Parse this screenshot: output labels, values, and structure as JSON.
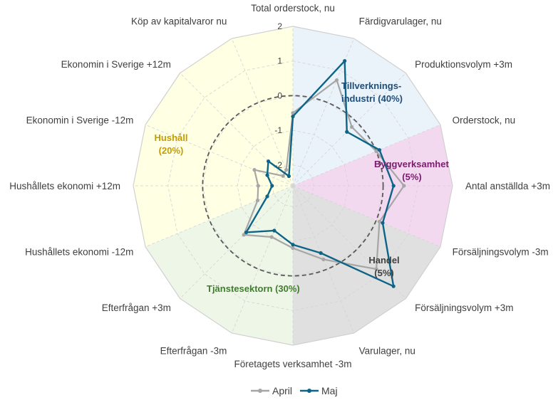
{
  "chart_data": {
    "type": "radar",
    "title": "",
    "axes": [
      "Total orderstock, nu",
      "Färdigvarulager, nu",
      "Produktionsvolym +3m",
      "Orderstock, nu",
      "Antal anställda +3m",
      "Försäljningsvolym -3m",
      "Försäljningsvolym +3m",
      "Varulager, nu",
      "Företagets verksamhet -3m",
      "Efterfrågan -3m",
      "Efterfrågan +3m",
      "Hushållets ekonomi -12m",
      "Hushållets ekonomi +12m",
      "Ekonomin i Sverige -12m",
      "Ekonomin i Sverige +12m",
      "Köp av kapitalvaror nu"
    ],
    "rlim": [
      -2.6,
      2
    ],
    "ticks": [
      2,
      1,
      0,
      -1,
      -2
    ],
    "tick_labels": [
      "2",
      "1",
      "0",
      "-1",
      "-2"
    ],
    "reference_circle": 0,
    "series": [
      {
        "name": "April",
        "color": "#A6A6A6",
        "values": [
          -0.5,
          0.7,
          -0.2,
          0.0,
          0.6,
          0.1,
          0.8,
          -0.3,
          -0.8,
          -1.0,
          -0.6,
          -1.5,
          -1.6,
          -1.4,
          -2.2,
          -2.1
        ]
      },
      {
        "name": "Maj",
        "color": "#0D6487",
        "values": [
          -0.6,
          1.3,
          -0.4,
          0.1,
          0.3,
          0.2,
          1.5,
          -0.5,
          -0.9,
          -1.2,
          -0.7,
          -1.8,
          -2.0,
          -1.8,
          -1.6,
          -2.3
        ]
      }
    ],
    "sectors": [
      {
        "label_lines": [
          "Tillverknings-",
          "industri (40%)"
        ],
        "color": "#1F4E79",
        "fill": "#EAF2FA",
        "start_axis": 0,
        "end_axis": 3
      },
      {
        "label_lines": [
          "Byggverksamhet",
          "(5%)"
        ],
        "color": "#7B1C6E",
        "fill": "#F3D9F0",
        "start_axis": 3,
        "end_axis": 5
      },
      {
        "label_lines": [
          "Handel",
          "(5%)"
        ],
        "color": "#404040",
        "fill": "#E0E0E0",
        "start_axis": 5,
        "end_axis": 8
      },
      {
        "label_lines": [
          "Tjänstesektorn (30%)"
        ],
        "color": "#3E7E2A",
        "fill": "#EEF6E8",
        "start_axis": 8,
        "end_axis": 11
      },
      {
        "label_lines": [
          "Hushåll",
          "(20%)"
        ],
        "color": "#C59C00",
        "fill": "#FFFFE4",
        "start_axis": 11,
        "end_axis": 16
      }
    ],
    "legend": {
      "position": "bottom",
      "entries": [
        "April",
        "Maj"
      ]
    }
  }
}
